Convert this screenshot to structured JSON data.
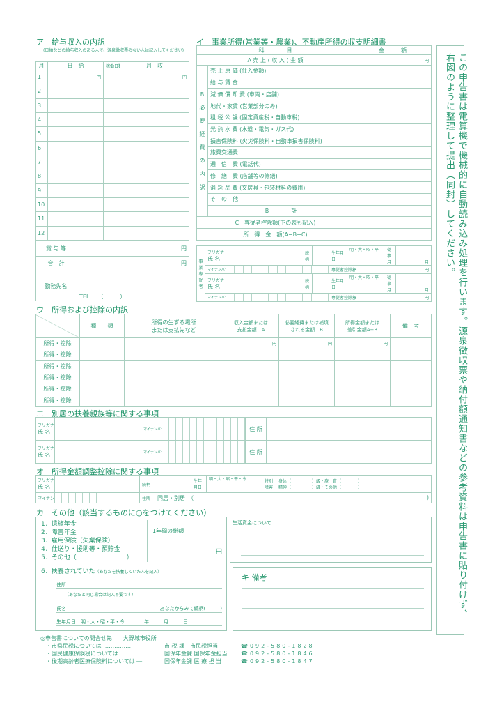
{
  "sec_a": {
    "title": "ア　給与収入の内訳",
    "note": "(日給などの給与収入のある人で、源泉徴収票のない人は記入してください)",
    "headers": [
      "月",
      "日　給",
      "稼働日数",
      "月　収"
    ],
    "months": [
      "1",
      "2",
      "3",
      "4",
      "5",
      "6",
      "7",
      "8",
      "9",
      "10",
      "11",
      "12"
    ],
    "yen": "円",
    "bonus": "賞 与 等",
    "total": "合　計",
    "employer": "勤務先名",
    "tel": "TEL　　（　　　）"
  },
  "sec_i": {
    "title": "イ　事業所得(営業等・農業)、不動産所得の収支明細書",
    "h_item": "科　　　　目",
    "h_amount": "金　　　額",
    "a_row": "A 売 上 ( 収 入 ) 金 額",
    "yen": "円",
    "b_label": "B 必 要 経 費 の 内 訳",
    "b_items": [
      "売 上 原 価 (仕入金額)",
      "給 与 賃 金",
      "減 価 償 却 費 (車両・店舗)",
      "地代・家賃 (営業部分のみ)",
      "租 税 公 課 (固定資産税・自動車税)",
      "光 熱 水 費 (水道・電気・ガス代)",
      "損害保険料 (火災保険料・自動車損害保険料)",
      "旅費交通費",
      "通　信　費 (電話代)",
      "修　繕　費 (店舗等の修繕)",
      "消 耗 品 費 (文房具・包装材料の費用)",
      "そ　の　他"
    ],
    "b_total": "B　　　　計",
    "c_row": "C　専従者控除額(下の表も記入)",
    "income": "所　得　金　額(A−B−C)"
  },
  "employee": {
    "label": "事業専従者",
    "furigana": "フリガナ",
    "name": "氏 名",
    "relation": "続柄",
    "birth": "生年月日",
    "eras": "明・大・昭・平",
    "months_label": "従事月",
    "month_unit": "月",
    "mynumber": "マイナンバー",
    "deduction": "専従者控除額",
    "yen": "円"
  },
  "sec_u": {
    "title": "ウ　所得および控除の内訳",
    "headers": [
      "種　　類",
      "所得の生ずる場所\nまたは支払先など",
      "収入金額または\n支払金額　A",
      "必要経費または補填\nされる金額　B",
      "所得金額または\n差引金額A−B",
      "備　考"
    ],
    "row_label": "所得・控除",
    "rows": 6,
    "yen": "円"
  },
  "sec_e": {
    "title": "エ　別居の扶養親族等に関する事項",
    "furigana": "フリガナ",
    "name": "氏 名",
    "mynumber": "マイナンバー",
    "address": "住 所"
  },
  "sec_o": {
    "title": "オ　所得金額調整控除に関する事項",
    "furigana": "フリガナ",
    "name": "氏 名",
    "relation": "続柄",
    "birth": "生年月日",
    "eras": "明・大・昭・平・令",
    "special": "特別障害",
    "disab1": "身体（　　　　　）級・療　育（　　　　）",
    "disab2": "精神（　　　　　）級・その他（　　　　）",
    "mynumber": "マイナンバー",
    "address": "住所",
    "living": "同居・別居　（",
    "close": ")"
  },
  "sec_ka": {
    "title": "カ　その他（該当するものに○をつけてください）",
    "items": [
      "1．遺族年金",
      "2．障害年金",
      "3．雇用保険（失業保険）",
      "4．仕送り・援助等・預貯金",
      "5．その他（　　　　　　　　）"
    ],
    "annual": "1年間の総額",
    "yen": "円",
    "item6": "6．扶養されていた",
    "item6_note": "（あなたを扶養していた人を記入）",
    "address": "住所",
    "address_note": "（あなたと同じ場合は記入不要です）",
    "name": "氏名",
    "relation": "あなたからみて続柄(　　　)",
    "birth": "生年月日　明・大・昭・平・令　　　　年　　　月　　　日"
  },
  "living_funds": "生活資金について",
  "sec_ki": {
    "title": "キ 備考"
  },
  "footer": {
    "heading": "◎申告書についての問合せ先　　大野城市役所",
    "rows": [
      {
        "item": "・市県民税については ……………",
        "dept": "市 税 課　市民税担当",
        "tel": "☎092-580-1828"
      },
      {
        "item": "・国民健康保険税については ………",
        "dept": "国保年金課 国保年金担当",
        "tel": "☎092-580-1846"
      },
      {
        "item": "・後期高齢者医療保険料については ―",
        "dept": "国保年金課 医 療 担 当",
        "tel": "☎092-580-1847"
      }
    ]
  },
  "side_note": "この申告書は電算機で機械的に自動読み込み処理を行います。源泉徴収票や納付額通知書などの参考資料は申告書に貼り付けず、右図のように整理して提出（同封）してください。",
  "colors": {
    "primary": "#2a9a72",
    "line": "#a9cfc0"
  }
}
